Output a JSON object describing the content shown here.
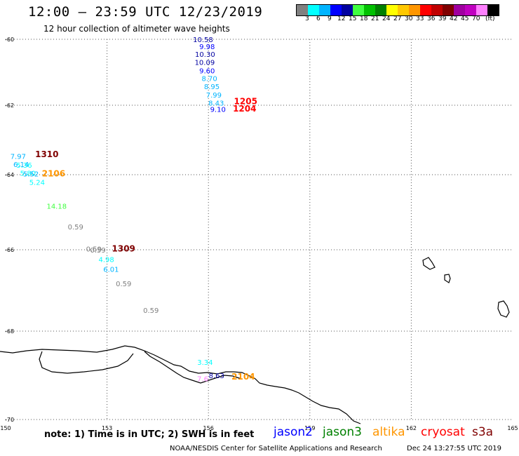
{
  "header": {
    "title": "12:00 – 23:59 UTC 12/23/2019",
    "subtitle": "12 hour collection of altimeter wave heights"
  },
  "colorbar": {
    "colors": [
      "#808080",
      "#00ffff",
      "#00b4ff",
      "#0000ff",
      "#0000a0",
      "#40ff40",
      "#00c000",
      "#008000",
      "#ffff00",
      "#ffc800",
      "#ff9600",
      "#ff0000",
      "#c00000",
      "#800000",
      "#a000a0",
      "#c000c0",
      "#ff80ff",
      "#000000"
    ],
    "labels": [
      "3",
      "6",
      "9",
      "12",
      "15",
      "18",
      "21",
      "24",
      "27",
      "30",
      "33",
      "36",
      "39",
      "42",
      "45",
      "70",
      "(ft)"
    ]
  },
  "axes": {
    "lat_labels": [
      "-60",
      "-62",
      "-64",
      "-66",
      "-68",
      "-70"
    ],
    "lon_labels": [
      "150",
      "153",
      "156",
      "159",
      "162",
      "165"
    ]
  },
  "observations": [
    {
      "text": "10.58",
      "lon": 155.84,
      "lat": -60.0,
      "color": "#0000a0"
    },
    {
      "text": "9.98",
      "lon": 155.96,
      "lat": -60.21,
      "color": "#0000ff"
    },
    {
      "text": "10.30",
      "lon": 155.9,
      "lat": -60.45,
      "color": "#0000a0"
    },
    {
      "text": "10.09",
      "lon": 155.89,
      "lat": -60.69,
      "color": "#0000a0"
    },
    {
      "text": "9.60",
      "lon": 155.96,
      "lat": -60.95,
      "color": "#0000ff"
    },
    {
      "text": "8.70",
      "lon": 156.03,
      "lat": -61.18,
      "color": "#00b4ff"
    },
    {
      "text": "8.95",
      "lon": 156.1,
      "lat": -61.43,
      "color": "#00b4ff"
    },
    {
      "text": "7.99",
      "lon": 156.16,
      "lat": -61.68,
      "color": "#00b4ff"
    },
    {
      "text": "8.43",
      "lon": 156.23,
      "lat": -61.93,
      "color": "#00b4ff"
    },
    {
      "text": "9.10",
      "lon": 156.28,
      "lat": -62.11,
      "color": "#0000ff"
    },
    {
      "text": "1205",
      "lon": 157.1,
      "lat": -61.88,
      "color": "#ff0000",
      "bold": true
    },
    {
      "text": "1204",
      "lon": 157.07,
      "lat": -62.1,
      "color": "#ff0000",
      "bold": true
    },
    {
      "text": "7.97",
      "lon": 150.37,
      "lat": -63.46,
      "color": "#00b4ff"
    },
    {
      "text": "1310",
      "lon": 151.22,
      "lat": -63.41,
      "color": "#800000",
      "bold": true
    },
    {
      "text": "6.14",
      "lon": 150.46,
      "lat": -63.7,
      "color": "#00b4ff"
    },
    {
      "text": "5.36",
      "lon": 150.55,
      "lat": -63.72,
      "color": "#00ffff"
    },
    {
      "text": "5.80",
      "lon": 150.66,
      "lat": -63.95,
      "color": "#00ffff"
    },
    {
      "text": "5.52",
      "lon": 150.75,
      "lat": -63.97,
      "color": "#00b4ff"
    },
    {
      "text": "2106",
      "lon": 151.42,
      "lat": -63.97,
      "color": "#ff9600",
      "bold": true
    },
    {
      "text": "5.24",
      "lon": 150.93,
      "lat": -64.2,
      "color": "#00ffff"
    },
    {
      "text": "14.18",
      "lon": 151.51,
      "lat": -64.83,
      "color": "#40ff40"
    },
    {
      "text": "0.59",
      "lon": 152.07,
      "lat": -65.38,
      "color": "#808080"
    },
    {
      "text": "0.59",
      "lon": 152.61,
      "lat": -65.97,
      "color": "#808080"
    },
    {
      "text": "0.59",
      "lon": 152.73,
      "lat": -66.0,
      "color": "#808080"
    },
    {
      "text": "1309",
      "lon": 153.49,
      "lat": -65.97,
      "color": "#800000",
      "bold": true
    },
    {
      "text": "4.98",
      "lon": 152.98,
      "lat": -66.23,
      "color": "#00ffff"
    },
    {
      "text": "6.01",
      "lon": 153.12,
      "lat": -66.47,
      "color": "#00b4ff"
    },
    {
      "text": "0.59",
      "lon": 153.49,
      "lat": -66.83,
      "color": "#808080"
    },
    {
      "text": "0.59",
      "lon": 154.3,
      "lat": -67.48,
      "color": "#808080"
    },
    {
      "text": "3.34",
      "lon": 155.9,
      "lat": -68.7,
      "color": "#00ffff"
    },
    {
      "text": "7.6",
      "lon": 155.83,
      "lat": -69.07,
      "color": "#ff80ff"
    },
    {
      "text": "8.63",
      "lon": 156.24,
      "lat": -69.0,
      "color": "#0000a0"
    },
    {
      "text": "2104",
      "lon": 157.03,
      "lat": -69.03,
      "color": "#ff9600",
      "bold": true
    }
  ],
  "footer": {
    "note": "note: 1) Time is in UTC; 2) SWH is in feet",
    "satellites": [
      {
        "name": "jason2",
        "color": "#0000ff"
      },
      {
        "name": "jason3",
        "color": "#008000"
      },
      {
        "name": "altika",
        "color": "#ff9600"
      },
      {
        "name": "cryosat",
        "color": "#ff0000"
      },
      {
        "name": "s3a",
        "color": "#800000"
      }
    ],
    "credit": "NOAA/NESDIS Center for Satellite Applications and Research",
    "timestamp": "Dec 24 13:27:55 UTC 2019"
  }
}
